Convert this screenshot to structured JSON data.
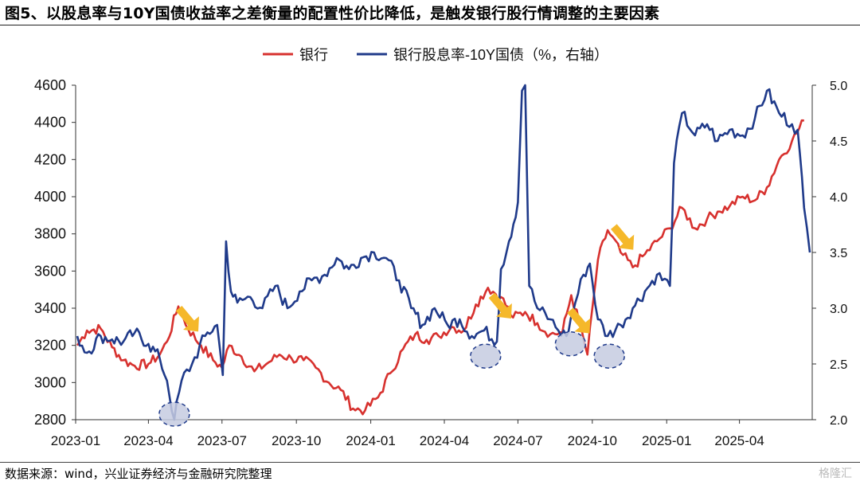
{
  "title": "图5、以股息率与10Y国债收益率之差衡量的配置性价比降低，是触发银行股行情调整的主要因素",
  "source": "数据来源：wind，兴业证券经济与金融研究院整理",
  "watermark": "格隆汇",
  "chart_data": {
    "type": "line",
    "legend_position": "top",
    "grid": false,
    "x_ticks": [
      "2023-01",
      "2023-04",
      "2023-07",
      "2023-10",
      "2024-01",
      "2024-04",
      "2024-07",
      "2024-10",
      "2025-01",
      "2025-04"
    ],
    "y_left": {
      "ylim": [
        2800,
        4600
      ],
      "ticks": [
        "2800",
        "3000",
        "3200",
        "3400",
        "3600",
        "3800",
        "4000",
        "4200",
        "4400",
        "4600"
      ]
    },
    "y_right": {
      "ylim": [
        2.0,
        5.0
      ],
      "ticks": [
        "2.0",
        "2.5",
        "3.0",
        "3.5",
        "4.0",
        "4.5",
        "5.0"
      ]
    },
    "series": [
      {
        "name": "银行",
        "axis": "left",
        "color": "#d7312e",
        "x": [
          "2023-01-03",
          "2023-01-15",
          "2023-02-01",
          "2023-02-15",
          "2023-03-01",
          "2023-03-15",
          "2023-04-01",
          "2023-04-15",
          "2023-04-24",
          "2023-05-08",
          "2023-05-20",
          "2023-06-05",
          "2023-06-20",
          "2023-07-01",
          "2023-07-10",
          "2023-07-25",
          "2023-08-10",
          "2023-08-25",
          "2023-09-10",
          "2023-09-25",
          "2023-10-10",
          "2023-10-25",
          "2023-11-10",
          "2023-11-25",
          "2023-12-10",
          "2023-12-25",
          "2024-01-10",
          "2024-01-25",
          "2024-02-10",
          "2024-02-25",
          "2024-03-10",
          "2024-03-25",
          "2024-04-10",
          "2024-04-25",
          "2024-05-10",
          "2024-05-25",
          "2024-06-10",
          "2024-06-25",
          "2024-07-10",
          "2024-07-25",
          "2024-08-10",
          "2024-08-25",
          "2024-09-05",
          "2024-09-15",
          "2024-09-25",
          "2024-10-08",
          "2024-10-20",
          "2024-11-05",
          "2024-11-20",
          "2024-12-05",
          "2024-12-20",
          "2025-01-05",
          "2025-01-20",
          "2025-02-05",
          "2025-02-20",
          "2025-03-05",
          "2025-03-20",
          "2025-04-05",
          "2025-04-20",
          "2025-05-05",
          "2025-05-20",
          "2025-06-05",
          "2025-06-20"
        ],
        "values": [
          3200,
          3280,
          3290,
          3190,
          3120,
          3090,
          3100,
          3150,
          3220,
          3410,
          3290,
          3200,
          3120,
          3080,
          3200,
          3140,
          3060,
          3100,
          3150,
          3130,
          3120,
          3080,
          3000,
          2960,
          2860,
          2850,
          2920,
          3050,
          3180,
          3260,
          3230,
          3250,
          3300,
          3280,
          3420,
          3510,
          3460,
          3350,
          3380,
          3320,
          3260,
          3270,
          3470,
          3320,
          3150,
          3660,
          3820,
          3700,
          3620,
          3690,
          3760,
          3830,
          3940,
          3830,
          3880,
          3920,
          3950,
          4000,
          3980,
          4050,
          4200,
          4300,
          4410
        ]
      },
      {
        "name": "银行股息率-10Y国债（%，右轴）",
        "axis": "right",
        "color": "#1f3a8a",
        "x": [
          "2023-01-03",
          "2023-01-15",
          "2023-02-01",
          "2023-02-15",
          "2023-03-01",
          "2023-03-15",
          "2023-04-01",
          "2023-04-15",
          "2023-04-24",
          "2023-05-03",
          "2023-05-12",
          "2023-05-25",
          "2023-06-10",
          "2023-06-25",
          "2023-07-02",
          "2023-07-06",
          "2023-07-12",
          "2023-07-20",
          "2023-08-05",
          "2023-08-20",
          "2023-09-05",
          "2023-09-20",
          "2023-10-05",
          "2023-10-20",
          "2023-11-05",
          "2023-11-20",
          "2023-12-05",
          "2023-12-20",
          "2024-01-05",
          "2024-01-20",
          "2024-02-05",
          "2024-02-20",
          "2024-03-05",
          "2024-03-20",
          "2024-04-05",
          "2024-04-20",
          "2024-05-05",
          "2024-05-20",
          "2024-06-05",
          "2024-06-10",
          "2024-06-20",
          "2024-07-01",
          "2024-07-06",
          "2024-07-10",
          "2024-07-15",
          "2024-07-25",
          "2024-08-10",
          "2024-08-20",
          "2024-08-30",
          "2024-09-10",
          "2024-09-20",
          "2024-09-28",
          "2024-10-08",
          "2024-10-20",
          "2024-11-05",
          "2024-11-20",
          "2024-12-05",
          "2024-12-20",
          "2025-01-05",
          "2025-01-10",
          "2025-01-20",
          "2025-02-05",
          "2025-02-20",
          "2025-03-05",
          "2025-03-20",
          "2025-04-05",
          "2025-04-20",
          "2025-05-05",
          "2025-05-20",
          "2025-06-05",
          "2025-06-12",
          "2025-06-20",
          "2025-06-27"
        ],
        "values": [
          2.75,
          2.6,
          2.75,
          2.72,
          2.7,
          2.78,
          2.68,
          2.55,
          2.35,
          2.0,
          2.35,
          2.5,
          2.75,
          2.85,
          2.4,
          3.6,
          3.15,
          3.05,
          3.1,
          3.0,
          3.2,
          3.0,
          3.15,
          3.25,
          3.3,
          3.45,
          3.35,
          3.45,
          3.5,
          3.45,
          3.25,
          3.0,
          2.85,
          3.0,
          2.85,
          2.9,
          2.75,
          2.8,
          2.7,
          3.35,
          3.6,
          3.95,
          4.95,
          5.0,
          3.2,
          3.0,
          2.9,
          2.8,
          2.75,
          3.05,
          3.3,
          3.4,
          2.9,
          2.75,
          2.85,
          3.0,
          3.15,
          3.3,
          3.2,
          4.3,
          4.75,
          4.55,
          4.65,
          4.5,
          4.6,
          4.55,
          4.7,
          4.95,
          4.75,
          4.65,
          4.6,
          3.9,
          3.5
        ]
      }
    ],
    "highlighted_troughs": [
      {
        "x": "2023-05-03",
        "axis": "right",
        "y": 2.05
      },
      {
        "x": "2024-05-22",
        "axis": "right",
        "y": 2.57
      },
      {
        "x": "2024-09-04",
        "axis": "right",
        "y": 2.68
      },
      {
        "x": "2024-10-22",
        "axis": "right",
        "y": 2.57
      }
    ],
    "arrows": [
      {
        "x": "2023-05-20",
        "axis": "left",
        "y": 3340
      },
      {
        "x": "2024-06-10",
        "axis": "left",
        "y": 3410
      },
      {
        "x": "2024-09-15",
        "axis": "left",
        "y": 3330
      },
      {
        "x": "2024-11-08",
        "axis": "left",
        "y": 3780
      }
    ]
  }
}
